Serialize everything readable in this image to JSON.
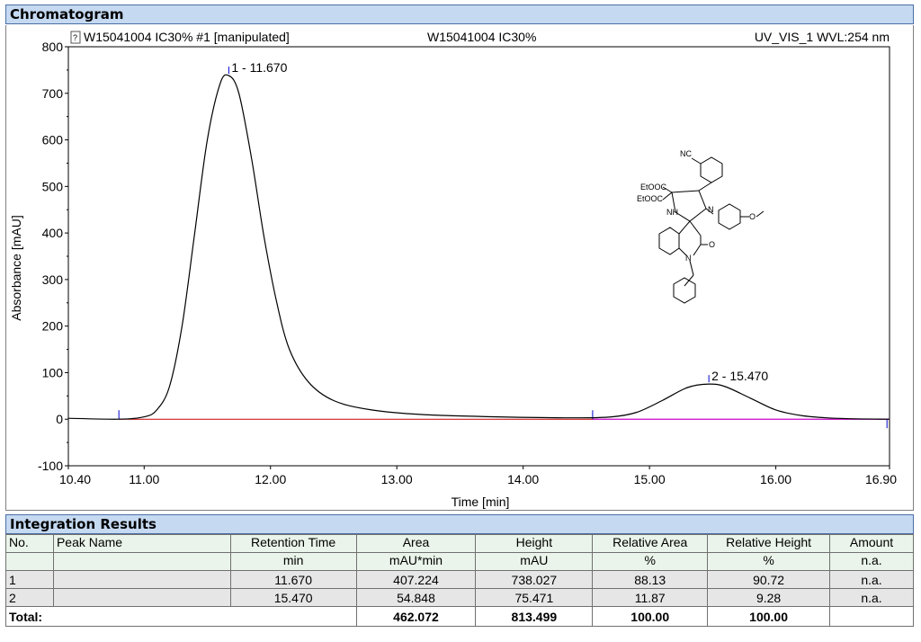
{
  "chromatogram": {
    "header": "Chromatogram",
    "title_left": "W15041004 IC30% #1 [manipulated]",
    "title_center": "W15041004 IC30%",
    "title_right": "UV_VIS_1 WVL:254 nm"
  },
  "chart_data": {
    "type": "line",
    "xlabel": "Time [min]",
    "ylabel": "Absorbance [mAU]",
    "xlim": [
      10.4,
      16.9
    ],
    "ylim": [
      -100,
      800
    ],
    "xticks": [
      "10.40",
      "11.00",
      "12.00",
      "13.00",
      "14.00",
      "15.00",
      "16.00",
      "16.90"
    ],
    "yticks": [
      "-100",
      "0",
      "100",
      "200",
      "300",
      "400",
      "500",
      "600",
      "700",
      "800"
    ],
    "series": [
      {
        "x": [
          10.4,
          10.8,
          11.0,
          11.1,
          11.2,
          11.3,
          11.4,
          11.5,
          11.6,
          11.67,
          11.75,
          11.85,
          11.95,
          12.05,
          12.15,
          12.3,
          12.5,
          12.8,
          13.2,
          13.8,
          14.4,
          14.7,
          14.9,
          15.1,
          15.3,
          15.47,
          15.6,
          15.8,
          16.0,
          16.2,
          16.4,
          16.6,
          16.9
        ],
        "y": [
          2,
          0,
          5,
          20,
          70,
          200,
          400,
          600,
          720,
          738,
          700,
          560,
          390,
          250,
          150,
          80,
          40,
          20,
          10,
          5,
          3,
          5,
          15,
          40,
          68,
          75.5,
          70,
          45,
          20,
          8,
          3,
          1,
          0
        ]
      }
    ],
    "peaks": [
      {
        "label": "1 - 11.670",
        "time": 11.67,
        "height": 738.027
      },
      {
        "label": "2 - 15.470",
        "time": 15.47,
        "height": 75.471
      }
    ]
  },
  "molecule": {
    "labels": {
      "nc": "NC",
      "etooc1": "EtOOC",
      "etooc2": "EtOOC",
      "n1": "N",
      "nh": "NH",
      "n2": "N",
      "o1": "O",
      "o2": "O"
    }
  },
  "integration": {
    "header": "Integration Results",
    "columns": [
      {
        "top": "No.",
        "bottom": ""
      },
      {
        "top": "Peak Name",
        "bottom": ""
      },
      {
        "top": "Retention Time",
        "bottom": "min"
      },
      {
        "top": "Area",
        "bottom": "mAU*min"
      },
      {
        "top": "Height",
        "bottom": "mAU"
      },
      {
        "top": "Relative Area",
        "bottom": "%"
      },
      {
        "top": "Relative Height",
        "bottom": "%"
      },
      {
        "top": "Amount",
        "bottom": "n.a."
      }
    ],
    "rows": [
      {
        "no": "1",
        "name": "",
        "rt": "11.670",
        "area": "407.224",
        "height": "738.027",
        "rel_area": "88.13",
        "rel_height": "90.72",
        "amount": "n.a."
      },
      {
        "no": "2",
        "name": "",
        "rt": "15.470",
        "area": "54.848",
        "height": "75.471",
        "rel_area": "11.87",
        "rel_height": "9.28",
        "amount": "n.a."
      }
    ],
    "total": {
      "label": "Total:",
      "area": "462.072",
      "height": "813.499",
      "rel_area": "100.00",
      "rel_height": "100.00"
    }
  }
}
